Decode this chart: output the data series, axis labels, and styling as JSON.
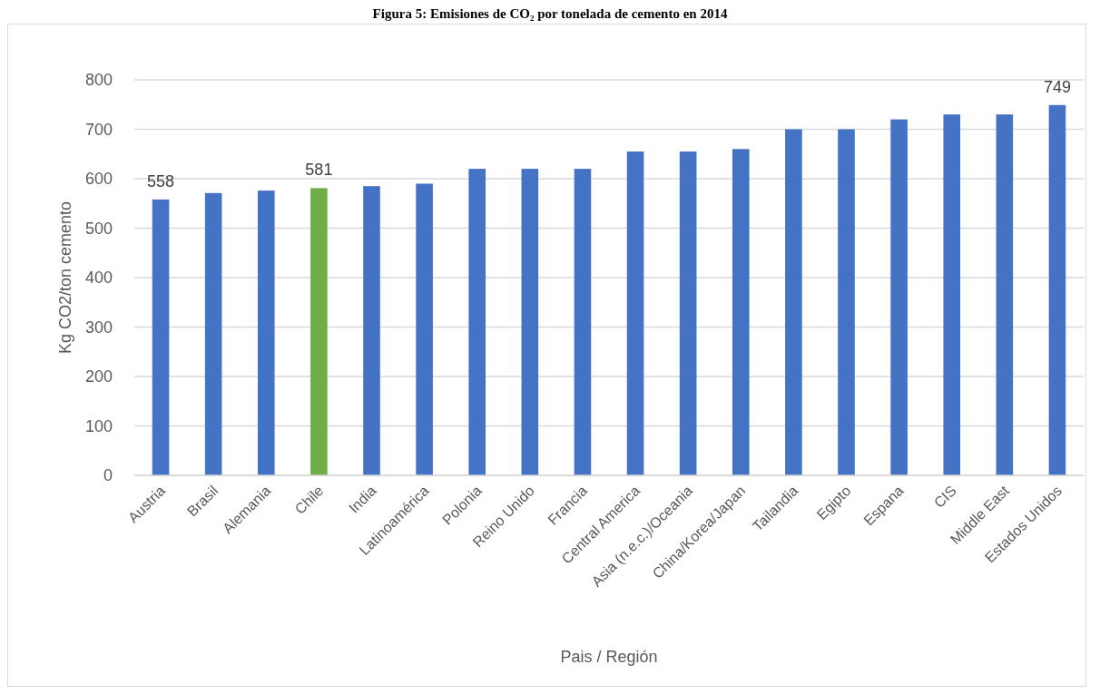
{
  "chart_data": {
    "type": "bar",
    "title": "Figura 5: Emisiones de CO₂ por tonelada de cemento en 2014",
    "xlabel": "Pais / Región",
    "ylabel": "Kg CO2/ton cemento",
    "categories": [
      "Austria",
      "Brasil",
      "Alemania",
      "Chile",
      "India",
      "Latinoamérica",
      "Polonia",
      "Reino Unido",
      "Francia",
      "Central America",
      "Asia (n.e.c.)/Oceania",
      "China/Korea/Japan",
      "Tailandia",
      "Egipto",
      "Espana",
      "CIS",
      "Middle East",
      "Estados Unidos"
    ],
    "values": [
      558,
      571,
      576,
      581,
      585,
      590,
      620,
      620,
      620,
      655,
      655,
      660,
      700,
      700,
      720,
      730,
      730,
      749
    ],
    "colors": [
      "#4472c4",
      "#4472c4",
      "#4472c4",
      "#70ad47",
      "#4472c4",
      "#4472c4",
      "#4472c4",
      "#4472c4",
      "#4472c4",
      "#4472c4",
      "#4472c4",
      "#4472c4",
      "#4472c4",
      "#4472c4",
      "#4472c4",
      "#4472c4",
      "#4472c4",
      "#4472c4"
    ],
    "value_labels": [
      "558",
      null,
      null,
      "581",
      null,
      null,
      null,
      null,
      null,
      null,
      null,
      null,
      null,
      null,
      null,
      null,
      null,
      "749"
    ],
    "ylim": [
      0,
      800
    ],
    "yticks": [
      0,
      100,
      200,
      300,
      400,
      500,
      600,
      700,
      800
    ],
    "grid": "y"
  }
}
